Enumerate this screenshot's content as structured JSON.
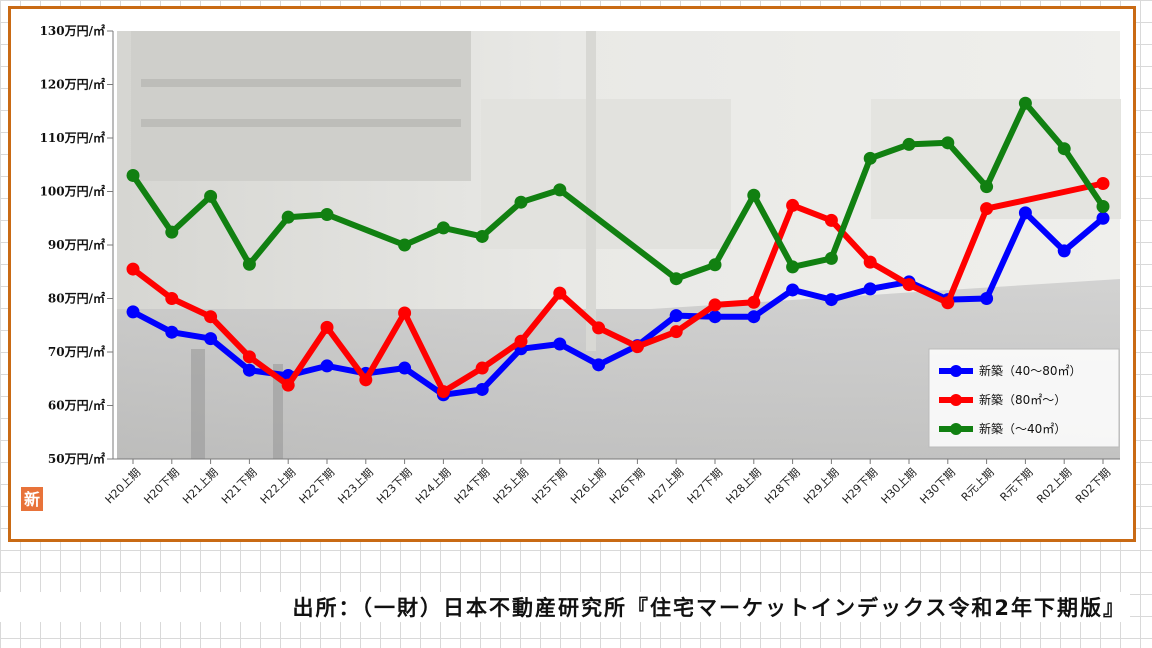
{
  "chart_data": {
    "type": "line",
    "y_ticks": [
      "50万円/㎡",
      "60万円/㎡",
      "70万円/㎡",
      "80万円/㎡",
      "90万円/㎡",
      "100万円/㎡",
      "110万円/㎡",
      "120万円/㎡",
      "130万円/㎡"
    ],
    "ylim": [
      50,
      130
    ],
    "categories": [
      "H20上期",
      "H20下期",
      "H21上期",
      "H21下期",
      "H22上期",
      "H22下期",
      "H23上期",
      "H23下期",
      "H24上期",
      "H24下期",
      "H25上期",
      "H25下期",
      "H26上期",
      "H26下期",
      "H27上期",
      "H27下期",
      "H28上期",
      "H28下期",
      "H29上期",
      "H29下期",
      "H30上期",
      "H30下期",
      "R元上期",
      "R元下期",
      "R02上期",
      "R02下期"
    ],
    "series": [
      {
        "name": "新築（40～80㎡）",
        "color": "#0000ff",
        "values": [
          77.5,
          73.7,
          72.5,
          66.6,
          65.6,
          67.4,
          66.0,
          67.0,
          62.0,
          63.0,
          70.6,
          71.5,
          67.6,
          71.2,
          76.8,
          76.6,
          76.6,
          81.6,
          79.8,
          81.8,
          83.1,
          79.8,
          80.0,
          96.0,
          88.9,
          95.0
        ]
      },
      {
        "name": "新築（80㎡～）",
        "color": "#ff0000",
        "values": [
          85.5,
          80.0,
          76.6,
          69.1,
          63.8,
          74.6,
          64.8,
          77.3,
          62.6,
          67.0,
          72.0,
          81.0,
          74.5,
          71.0,
          73.8,
          78.8,
          79.3,
          97.4,
          94.6,
          86.8,
          82.6,
          79.2,
          96.8,
          null,
          null,
          101.5
        ]
      },
      {
        "name": "新築（～40㎡）",
        "color": "#118011",
        "values": [
          103.0,
          92.4,
          99.1,
          86.4,
          95.2,
          95.7,
          null,
          90.0,
          93.2,
          91.6,
          98.0,
          100.3,
          null,
          null,
          83.7,
          86.3,
          99.3,
          85.9,
          87.5,
          106.2,
          108.8,
          109.1,
          100.9,
          116.5,
          108.0,
          97.2
        ]
      }
    ],
    "grid": false,
    "legend_placement": "bottom-right",
    "badge_text": "新"
  },
  "source": "出所：（一財）日本不動産研究所『住宅マーケットインデックス令和2年下期版』"
}
